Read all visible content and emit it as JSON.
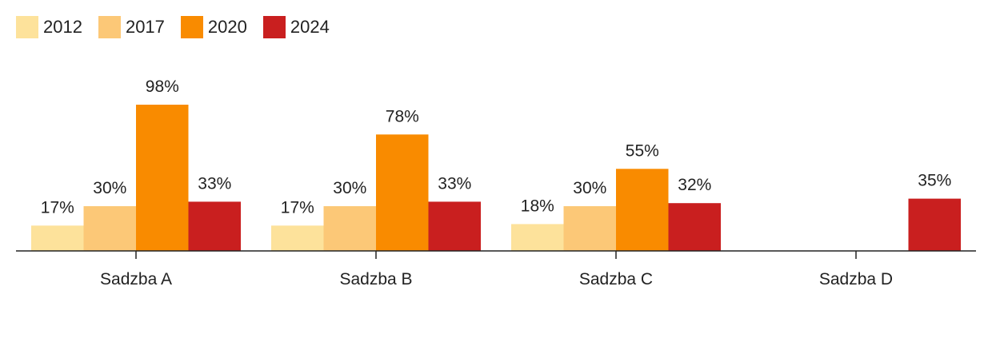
{
  "chart_data": {
    "type": "bar",
    "categories": [
      "Sadzba A",
      "Sadzba B",
      "Sadzba C",
      "Sadzba D"
    ],
    "series": [
      {
        "name": "2012",
        "color": "#fde29b",
        "values": [
          17,
          17,
          18,
          null
        ],
        "labels": [
          "17%",
          "17%",
          "18%",
          ""
        ]
      },
      {
        "name": "2017",
        "color": "#fcc877",
        "values": [
          30,
          30,
          30,
          null
        ],
        "labels": [
          "30%",
          "30%",
          "30%",
          ""
        ]
      },
      {
        "name": "2020",
        "color": "#f98b00",
        "values": [
          98,
          78,
          55,
          null
        ],
        "labels": [
          "98%",
          "78%",
          "55%",
          ""
        ]
      },
      {
        "name": "2024",
        "color": "#c91f1f",
        "values": [
          33,
          33,
          32,
          35
        ],
        "labels": [
          "33%",
          "33%",
          "32%",
          "35%"
        ]
      }
    ],
    "ylim": [
      0,
      100
    ],
    "legend_position": "top-left",
    "grid": false
  }
}
